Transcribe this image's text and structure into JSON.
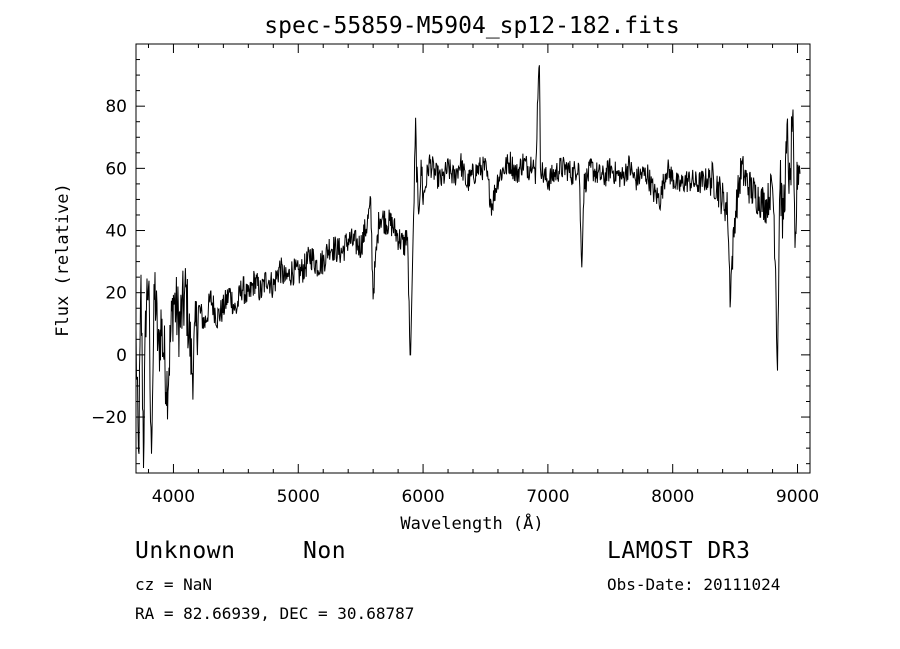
{
  "chart_data": {
    "type": "line",
    "title": "spec-55859-M5904_sp12-182.fits",
    "xlabel": "Wavelength (Å)",
    "ylabel": "Flux (relative)",
    "xlim": [
      3700,
      9100
    ],
    "ylim": [
      -38,
      100
    ],
    "xticks": [
      4000,
      5000,
      6000,
      7000,
      8000,
      9000
    ],
    "xtick_labels": [
      "4000",
      "5000",
      "6000",
      "7000",
      "8000",
      "9000"
    ],
    "yticks": [
      -20,
      0,
      20,
      40,
      60,
      80
    ],
    "ytick_labels": [
      "−20",
      "0",
      "20",
      "40",
      "60",
      "80"
    ],
    "grid": false,
    "series": [
      {
        "name": "flux",
        "x": [
          3700,
          3720,
          3740,
          3760,
          3780,
          3800,
          3820,
          3850,
          3880,
          3900,
          3950,
          4000,
          4050,
          4100,
          4150,
          4200,
          4250,
          4300,
          4350,
          4400,
          4450,
          4500,
          4550,
          4600,
          4650,
          4700,
          4750,
          4800,
          4850,
          4900,
          4950,
          5000,
          5050,
          5100,
          5150,
          5200,
          5250,
          5300,
          5350,
          5400,
          5450,
          5500,
          5550,
          5580,
          5600,
          5650,
          5700,
          5750,
          5800,
          5850,
          5870,
          5880,
          5895,
          5900,
          5920,
          5940,
          5960,
          5975,
          5990,
          6000,
          6050,
          6100,
          6150,
          6200,
          6250,
          6300,
          6350,
          6400,
          6450,
          6500,
          6550,
          6600,
          6650,
          6700,
          6750,
          6800,
          6850,
          6880,
          6900,
          6920,
          6930,
          6940,
          6960,
          7000,
          7050,
          7100,
          7150,
          7200,
          7250,
          7270,
          7290,
          7350,
          7400,
          7450,
          7500,
          7550,
          7600,
          7650,
          7700,
          7750,
          7800,
          7850,
          7900,
          7950,
          8000,
          8050,
          8100,
          8150,
          8200,
          8250,
          8300,
          8350,
          8400,
          8440,
          8460,
          8500,
          8550,
          8600,
          8650,
          8700,
          8750,
          8800,
          8820,
          8840,
          8860,
          8880,
          8900,
          8920,
          8940,
          8960,
          8980,
          9000,
          9020
        ],
        "y": [
          5,
          -35,
          20,
          -30,
          15,
          25,
          -31,
          22,
          0,
          10,
          -10,
          18,
          10,
          20,
          -5,
          15,
          10,
          18,
          12,
          15,
          20,
          14,
          22,
          18,
          24,
          20,
          25,
          22,
          28,
          24,
          27,
          26,
          28,
          32,
          29,
          30,
          35,
          34,
          33,
          37,
          36,
          35,
          42,
          48,
          20,
          45,
          43,
          42,
          38,
          35,
          40,
          30,
          0,
          0,
          38,
          72,
          45,
          55,
          60,
          50,
          62,
          58,
          56,
          60,
          57,
          62,
          55,
          58,
          60,
          60,
          48,
          57,
          60,
          62,
          58,
          62,
          60,
          64,
          55,
          85,
          98,
          62,
          58,
          56,
          58,
          60,
          60,
          58,
          62,
          28,
          55,
          60,
          58,
          57,
          60,
          58,
          57,
          61,
          56,
          58,
          58,
          52,
          50,
          60,
          57,
          54,
          56,
          56,
          55,
          56,
          57,
          55,
          50,
          47,
          20,
          45,
          60,
          55,
          52,
          50,
          48,
          55,
          36,
          -3,
          60,
          42,
          55,
          70,
          50,
          80,
          30,
          60,
          62
        ]
      }
    ]
  },
  "info": {
    "class": "Unknown",
    "subclass": "Non",
    "survey": "LAMOST DR3",
    "cz": "cz = NaN",
    "obs_date": "Obs-Date: 20111024",
    "coords": "RA =  82.66939, DEC =  30.68787"
  }
}
